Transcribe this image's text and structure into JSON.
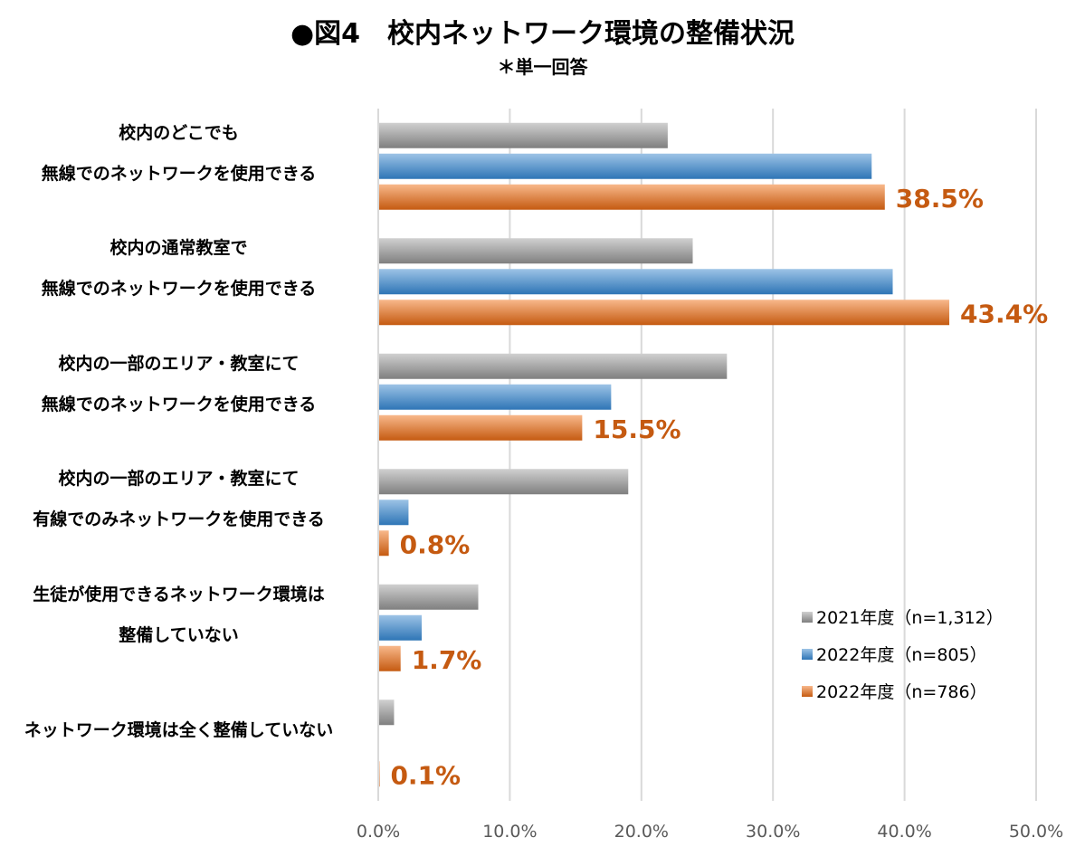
{
  "chart_data": {
    "type": "bar",
    "orientation": "horizontal",
    "title": "●図4　校内ネットワーク環境の整備状況",
    "subtitle": "＊単一回答",
    "categories": [
      [
        "校内のどこでも",
        "無線でのネットワークを使用できる"
      ],
      [
        "校内の通常教室で",
        "無線でのネットワークを使用できる"
      ],
      [
        "校内の一部のエリア・教室にて",
        "無線でのネットワークを使用できる"
      ],
      [
        "校内の一部のエリア・教室にて",
        "有線でのみネットワークを使用できる"
      ],
      [
        "生徒が使用できるネットワーク環境は",
        "整備していない"
      ],
      [
        "ネットワーク環境は全く整備していない"
      ]
    ],
    "series": [
      {
        "name": "2021年度（n=1,312）",
        "color": "#a5a5a5",
        "values": [
          22.0,
          23.9,
          26.5,
          19.0,
          7.6,
          1.2
        ]
      },
      {
        "name": "2022年度（n=805）",
        "color": "#5b9bd5",
        "values": [
          37.5,
          39.1,
          17.7,
          2.3,
          3.3,
          0.0
        ]
      },
      {
        "name": "2022年度（n=786）",
        "color": "#ed7d31",
        "values": [
          38.5,
          43.4,
          15.5,
          0.8,
          1.7,
          0.1
        ],
        "data_labels": [
          "38.5%",
          "43.4%",
          "15.5%",
          "0.8%",
          "1.7%",
          "0.1%"
        ]
      }
    ],
    "xlim": [
      0,
      50
    ],
    "xticks": [
      "0.0%",
      "10.0%",
      "20.0%",
      "30.0%",
      "40.0%",
      "50.0%"
    ],
    "grid": true,
    "legend_position": "bottom-right",
    "label_color": "#c55a11"
  }
}
